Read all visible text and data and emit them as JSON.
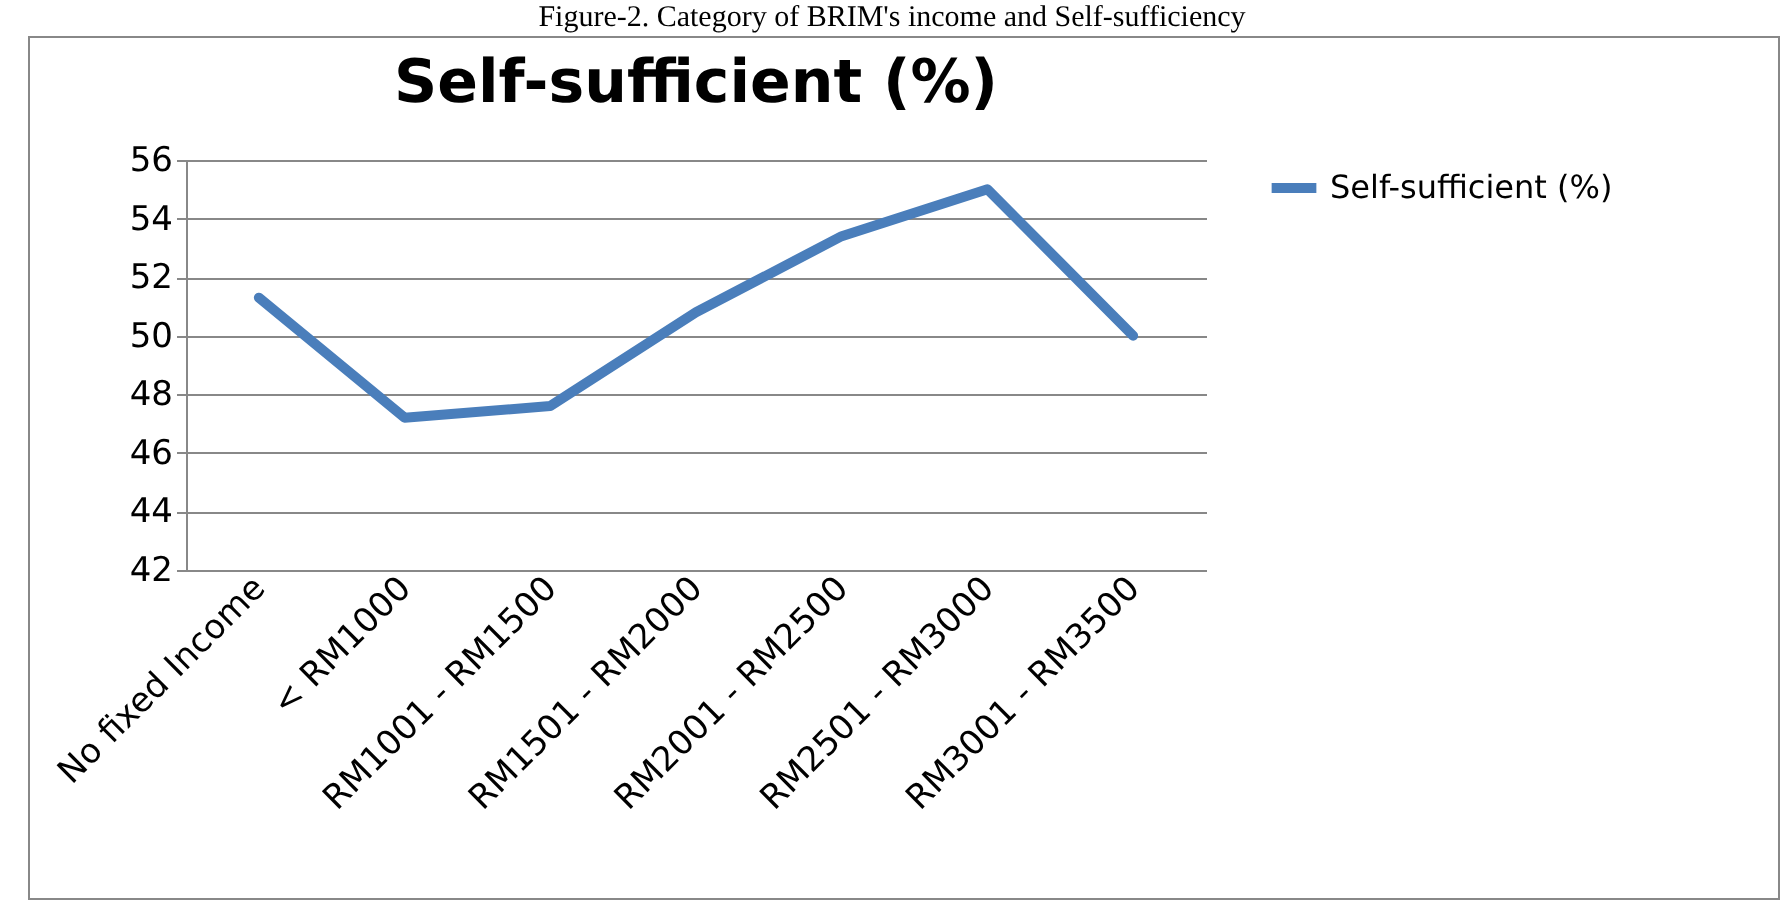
{
  "chart_data": {
    "type": "line",
    "title": "Self-sufficient (%)",
    "annotations": [
      "Figure-2. Category of BRIM's income and Self-sufficiency"
    ],
    "categories": [
      "No fixed Income",
      "< RM1000",
      "RM1001 - RM1500",
      "RM1501 - RM2000",
      "RM2001 - RM2500",
      "RM2501 - RM3000",
      "RM3001 - RM3500"
    ],
    "series": [
      {
        "name": "Self-sufficient (%)",
        "color": "#4a7ebb",
        "values": [
          51.3,
          47.2,
          47.6,
          50.8,
          53.4,
          55.0,
          50.0
        ]
      }
    ],
    "ylim": [
      42,
      56
    ],
    "yticks": [
      42,
      44,
      46,
      48,
      50,
      52,
      54,
      56
    ],
    "grid": "y",
    "legend": "right",
    "marker": "none",
    "line_style": "solid"
  }
}
